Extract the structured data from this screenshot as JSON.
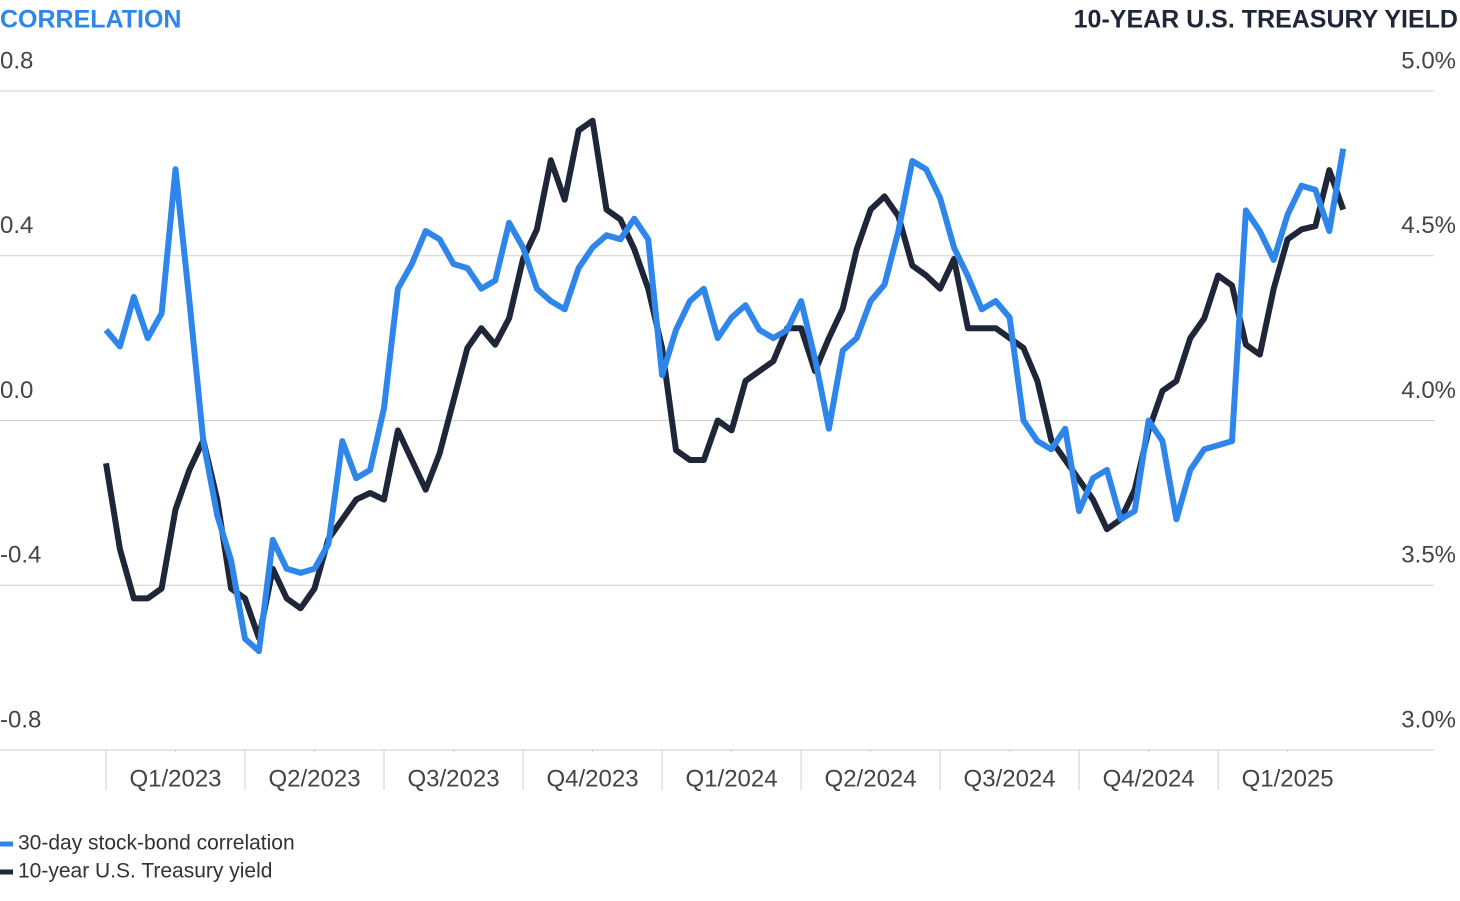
{
  "chart_data": {
    "type": "line",
    "y_axis_title": "CORRELATION",
    "y2_axis_title": "10-YEAR U.S. TREASURY YIELD",
    "x": [
      0,
      0.1,
      0.2,
      0.3,
      0.4,
      0.5,
      0.6,
      0.7,
      0.8,
      0.9,
      1,
      1.1,
      1.2,
      1.3,
      1.4,
      1.5,
      1.6,
      1.7,
      1.8,
      1.9,
      2,
      2.1,
      2.2,
      2.3,
      2.4,
      2.5,
      2.6,
      2.7,
      2.8,
      2.9,
      3,
      3.1,
      3.2,
      3.3,
      3.4,
      3.5,
      3.6,
      3.7,
      3.8,
      3.9,
      4,
      4.1,
      4.2,
      4.3,
      4.4,
      4.5,
      4.6,
      4.7,
      4.8,
      4.9,
      5,
      5.1,
      5.2,
      5.3,
      5.4,
      5.5,
      5.6,
      5.7,
      5.8,
      5.9,
      6,
      6.1,
      6.2,
      6.3,
      6.4,
      6.5,
      6.6,
      6.7,
      6.8,
      6.9,
      7,
      7.1,
      7.2,
      7.3,
      7.4,
      7.5,
      7.6,
      7.7,
      7.8,
      7.9,
      8,
      8.1,
      8.2,
      8.3,
      8.4,
      8.5,
      8.6,
      8.7,
      8.8,
      8.9
    ],
    "xlim": [
      0,
      9.74
    ],
    "xticks": [
      {
        "value": 0.5,
        "label": "Q1/2023"
      },
      {
        "value": 1.5,
        "label": "Q2/2023"
      },
      {
        "value": 2.5,
        "label": "Q3/2023"
      },
      {
        "value": 3.5,
        "label": "Q4/2023"
      },
      {
        "value": 4.5,
        "label": "Q1/2024"
      },
      {
        "value": 5.5,
        "label": "Q2/2024"
      },
      {
        "value": 6.5,
        "label": "Q3/2024"
      },
      {
        "value": 7.5,
        "label": "Q4/2024"
      },
      {
        "value": 8.5,
        "label": "Q1/2025"
      }
    ],
    "ylim": [
      -0.8,
      0.8
    ],
    "yticks": [
      0.8,
      0.4,
      {
        "value": 0,
        "label": "0.0"
      },
      -0.4,
      -0.8
    ],
    "y2lim": [
      3,
      5
    ],
    "y2ticks": [
      {
        "value": 5,
        "label": "5.0%"
      },
      {
        "value": 4.5,
        "label": "4.5%"
      },
      {
        "value": 4,
        "label": "4.0%"
      },
      {
        "value": 3.5,
        "label": "3.5%"
      },
      {
        "value": 3,
        "label": "3.0%"
      }
    ],
    "grid": true,
    "legend": "bottom-left",
    "series": [
      {
        "name": "30-day stock-bond correlation",
        "color": "#2f86ea",
        "values": [
          0.22,
          0.18,
          0.3,
          0.2,
          0.26,
          0.61,
          0.29,
          -0.05,
          -0.23,
          -0.34,
          -0.53,
          -0.56,
          -0.29,
          -0.36,
          -0.37,
          -0.36,
          -0.3,
          -0.05,
          -0.14,
          -0.12,
          0.03,
          0.32,
          0.38,
          0.46,
          0.44,
          0.38,
          0.37,
          0.32,
          0.34,
          0.48,
          0.42,
          0.32,
          0.29,
          0.27,
          0.37,
          0.42,
          0.45,
          0.44,
          0.49,
          0.44,
          0.11,
          0.22,
          0.29,
          0.32,
          0.2,
          0.25,
          0.28,
          0.22,
          0.2,
          0.22,
          0.29,
          0.15,
          -0.02,
          0.17,
          0.2,
          0.29,
          0.33,
          0.46,
          0.63,
          0.61,
          0.54,
          0.42,
          0.35,
          0.27,
          0.29,
          0.25,
          0,
          -0.05,
          -0.07,
          -0.02,
          -0.22,
          -0.14,
          -0.12,
          -0.24,
          -0.22,
          0,
          -0.05,
          -0.24,
          -0.12,
          -0.07,
          -0.06,
          -0.05,
          0.51,
          0.46,
          0.39,
          0.5,
          0.57,
          0.56,
          0.46,
          0.66
        ]
      },
      {
        "name": "10-year U.S. Treasury yield",
        "color": "#1e2638",
        "axis": "y2",
        "values": [
          3.87,
          3.61,
          3.46,
          3.46,
          3.49,
          3.73,
          3.85,
          3.94,
          3.76,
          3.49,
          3.46,
          3.34,
          3.55,
          3.46,
          3.43,
          3.49,
          3.64,
          3.7,
          3.76,
          3.78,
          3.76,
          3.97,
          3.88,
          3.79,
          3.9,
          4.06,
          4.22,
          4.28,
          4.23,
          4.31,
          4.49,
          4.58,
          4.79,
          4.67,
          4.88,
          4.91,
          4.64,
          4.61,
          4.52,
          4.4,
          4.22,
          3.91,
          3.88,
          3.88,
          4,
          3.97,
          4.12,
          4.15,
          4.18,
          4.28,
          4.28,
          4.15,
          4.25,
          4.34,
          4.52,
          4.64,
          4.68,
          4.62,
          4.47,
          4.44,
          4.4,
          4.49,
          4.28,
          4.28,
          4.28,
          4.25,
          4.22,
          4.12,
          3.94,
          3.88,
          3.82,
          3.76,
          3.67,
          3.7,
          3.79,
          3.97,
          4.09,
          4.12,
          4.25,
          4.31,
          4.44,
          4.41,
          4.23,
          4.2,
          4.4,
          4.55,
          4.58,
          4.59,
          4.76,
          4.64
        ]
      }
    ]
  }
}
